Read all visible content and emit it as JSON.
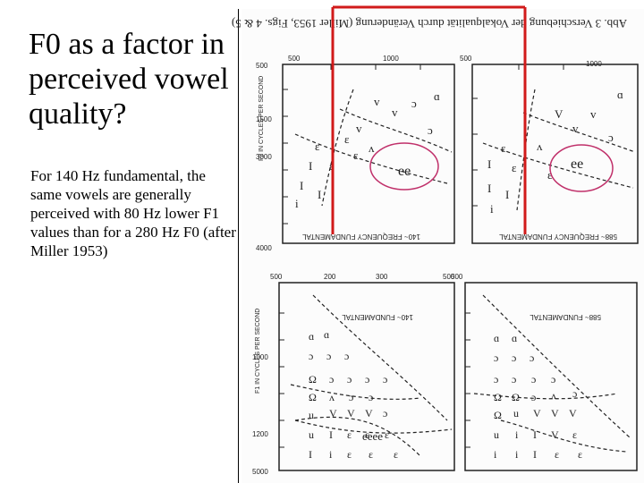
{
  "slide": {
    "title": "F0 as a factor in perceived vowel quality?",
    "body": "For 140 Hz fundamental, the same vowels are generally perceived with 80 Hz lower F1 values than for a 280 Hz F0 (after Miller 1953)"
  },
  "scan": {
    "caption": "Abb. 3 Verschiebung der Vokalqualität durch Veränderung (Miller 1953, Figs. 4 & 5)",
    "top_left": {
      "label": "140~ FREQUENCY FUNDAMENTAL",
      "ticks_top": [
        "500",
        "1000"
      ],
      "ticks_left": [
        "500",
        "1500",
        "3000",
        "4000"
      ],
      "ylabel": "F2 IN CYCLES PER SECOND"
    },
    "top_right": {
      "label": "588~ FREQUENCY FUNDAMENTAL",
      "ticks_top": [
        "500",
        "1000"
      ]
    },
    "bottom_left": {
      "label": "140~ FUNDAMENTAL",
      "ticks_top": [
        "500",
        "200",
        "300",
        "500"
      ],
      "ticks_left": [
        "1000",
        "1200",
        "5000"
      ],
      "ylabel": "F1 IN CYCLES PER SECOND"
    },
    "bottom_right": {
      "label": "588~ FUNDAMENTAL",
      "ticks_top": [
        "500"
      ]
    },
    "annotation_color": "#d11a1a",
    "circle_color": "#c0306a"
  }
}
